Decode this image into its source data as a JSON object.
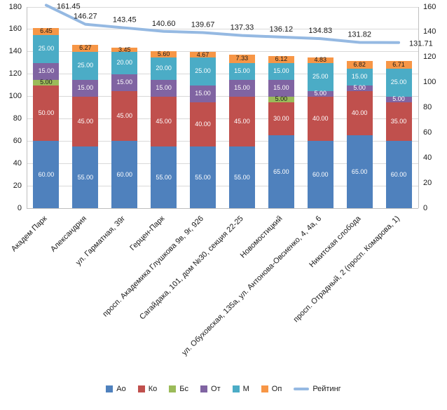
{
  "chart_data": {
    "type": "bar",
    "subtype": "stacked-bar-with-line-overlay",
    "title": "",
    "grid": true,
    "legend_position": "bottom",
    "categories": [
      "Академ Парк",
      "Александрия",
      "ул. Гарматная, 39г",
      "Герцен-Парк",
      "просп. Академика Глушкова 9в, 9г, 926",
      "Сагайдака, 101, дом №30, секция 22-25",
      "Новомостицкий",
      "ул. Обуховская, 135а, ул. Антонова-Овсиенко, 4, 4а, 6",
      "Никитская слобода",
      "просп. Отрадный, 2 (просп. Комарова, 1)"
    ],
    "bar_series": [
      {
        "key": "ao",
        "name": "Ао",
        "color": "#4F81BD",
        "label_color": "#ffffff",
        "values": [
          60,
          55,
          60,
          55,
          55,
          55,
          65,
          60,
          65,
          60
        ]
      },
      {
        "key": "ko",
        "name": "Ко",
        "color": "#C0504D",
        "label_color": "#ffffff",
        "values": [
          50,
          45,
          45,
          45,
          40,
          45,
          30,
          40,
          40,
          35
        ]
      },
      {
        "key": "bs",
        "name": "Бс",
        "color": "#9BBB59",
        "label_color": "#1a1a1a",
        "values": [
          5,
          0,
          0,
          0,
          0,
          0,
          5,
          0,
          0,
          0
        ]
      },
      {
        "key": "ot",
        "name": "От",
        "color": "#8064A2",
        "label_color": "#ffffff",
        "values": [
          15,
          15,
          15,
          15,
          15,
          15,
          15,
          5,
          5,
          5
        ]
      },
      {
        "key": "m",
        "name": "М",
        "color": "#4BACC6",
        "label_color": "#ffffff",
        "values": [
          25,
          25,
          20,
          20,
          25,
          15,
          15,
          25,
          15,
          25
        ]
      },
      {
        "key": "op",
        "name": "Оп",
        "color": "#F79646",
        "label_color": "#1a1a1a",
        "values": [
          6.45,
          6.27,
          3.45,
          5.6,
          4.67,
          7.33,
          6.12,
          4.83,
          6.82,
          6.71
        ]
      }
    ],
    "line_series": {
      "key": "rating",
      "name": "Рейтинг",
      "color": "#95B9E2",
      "values": [
        161.45,
        146.27,
        143.45,
        140.6,
        139.67,
        137.33,
        136.12,
        134.83,
        131.82,
        131.71
      ]
    },
    "left_axis": {
      "min": 0,
      "max": 180,
      "step": 20
    },
    "right_axis": {
      "min": 0,
      "max": 160,
      "step": 20
    },
    "legend": [
      "Ао",
      "Ко",
      "Бс",
      "От",
      "М",
      "Оп",
      "Рейтинг"
    ]
  }
}
